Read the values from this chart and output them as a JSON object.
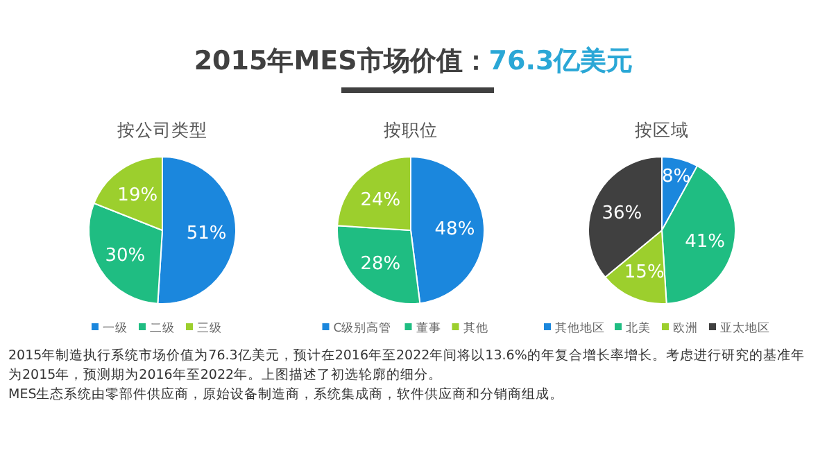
{
  "chart_data": [
    {
      "type": "other",
      "title": "2015年MES市场价值：76.3亿美元",
      "annotations": [
        "2015年制造执行系统市场价值为76.3亿美元，预计在2016年至2022年间将以13.6%的年复合增长率增长。考虑进行研究的基准年为2015年，预测期为2016年至2022年。上图描述了初选轮廓的细分。",
        "MES生态系统由零部件供应商，原始设备制造商，系统集成商，软件供应商和分销商组成。"
      ]
    },
    {
      "type": "pie",
      "title": "按公司类型",
      "categories": [
        "一级",
        "二级",
        "三级"
      ],
      "values": [
        51,
        30,
        19
      ],
      "value_labels": [
        "51%",
        "30%",
        "19%"
      ],
      "colors": [
        "#1b87dd",
        "#1fbd82",
        "#9ccf2d"
      ],
      "legend": "bottom"
    },
    {
      "type": "pie",
      "title": "按职位",
      "categories": [
        "C级别高管",
        "董事",
        "其他"
      ],
      "values": [
        48,
        28,
        24
      ],
      "value_labels": [
        "48%",
        "28%",
        "24%"
      ],
      "colors": [
        "#1b87dd",
        "#1fbd82",
        "#9ccf2d"
      ],
      "legend": "bottom"
    },
    {
      "type": "pie",
      "title": "按区域",
      "categories": [
        "其他地区",
        "北美",
        "欧洲",
        "亚太地区"
      ],
      "values": [
        8,
        41,
        15,
        36
      ],
      "value_labels": [
        "8%",
        "41%",
        "15%",
        "36%"
      ],
      "colors": [
        "#1b87dd",
        "#1fbd82",
        "#9ccf2d",
        "#404040"
      ],
      "legend": "bottom"
    }
  ]
}
